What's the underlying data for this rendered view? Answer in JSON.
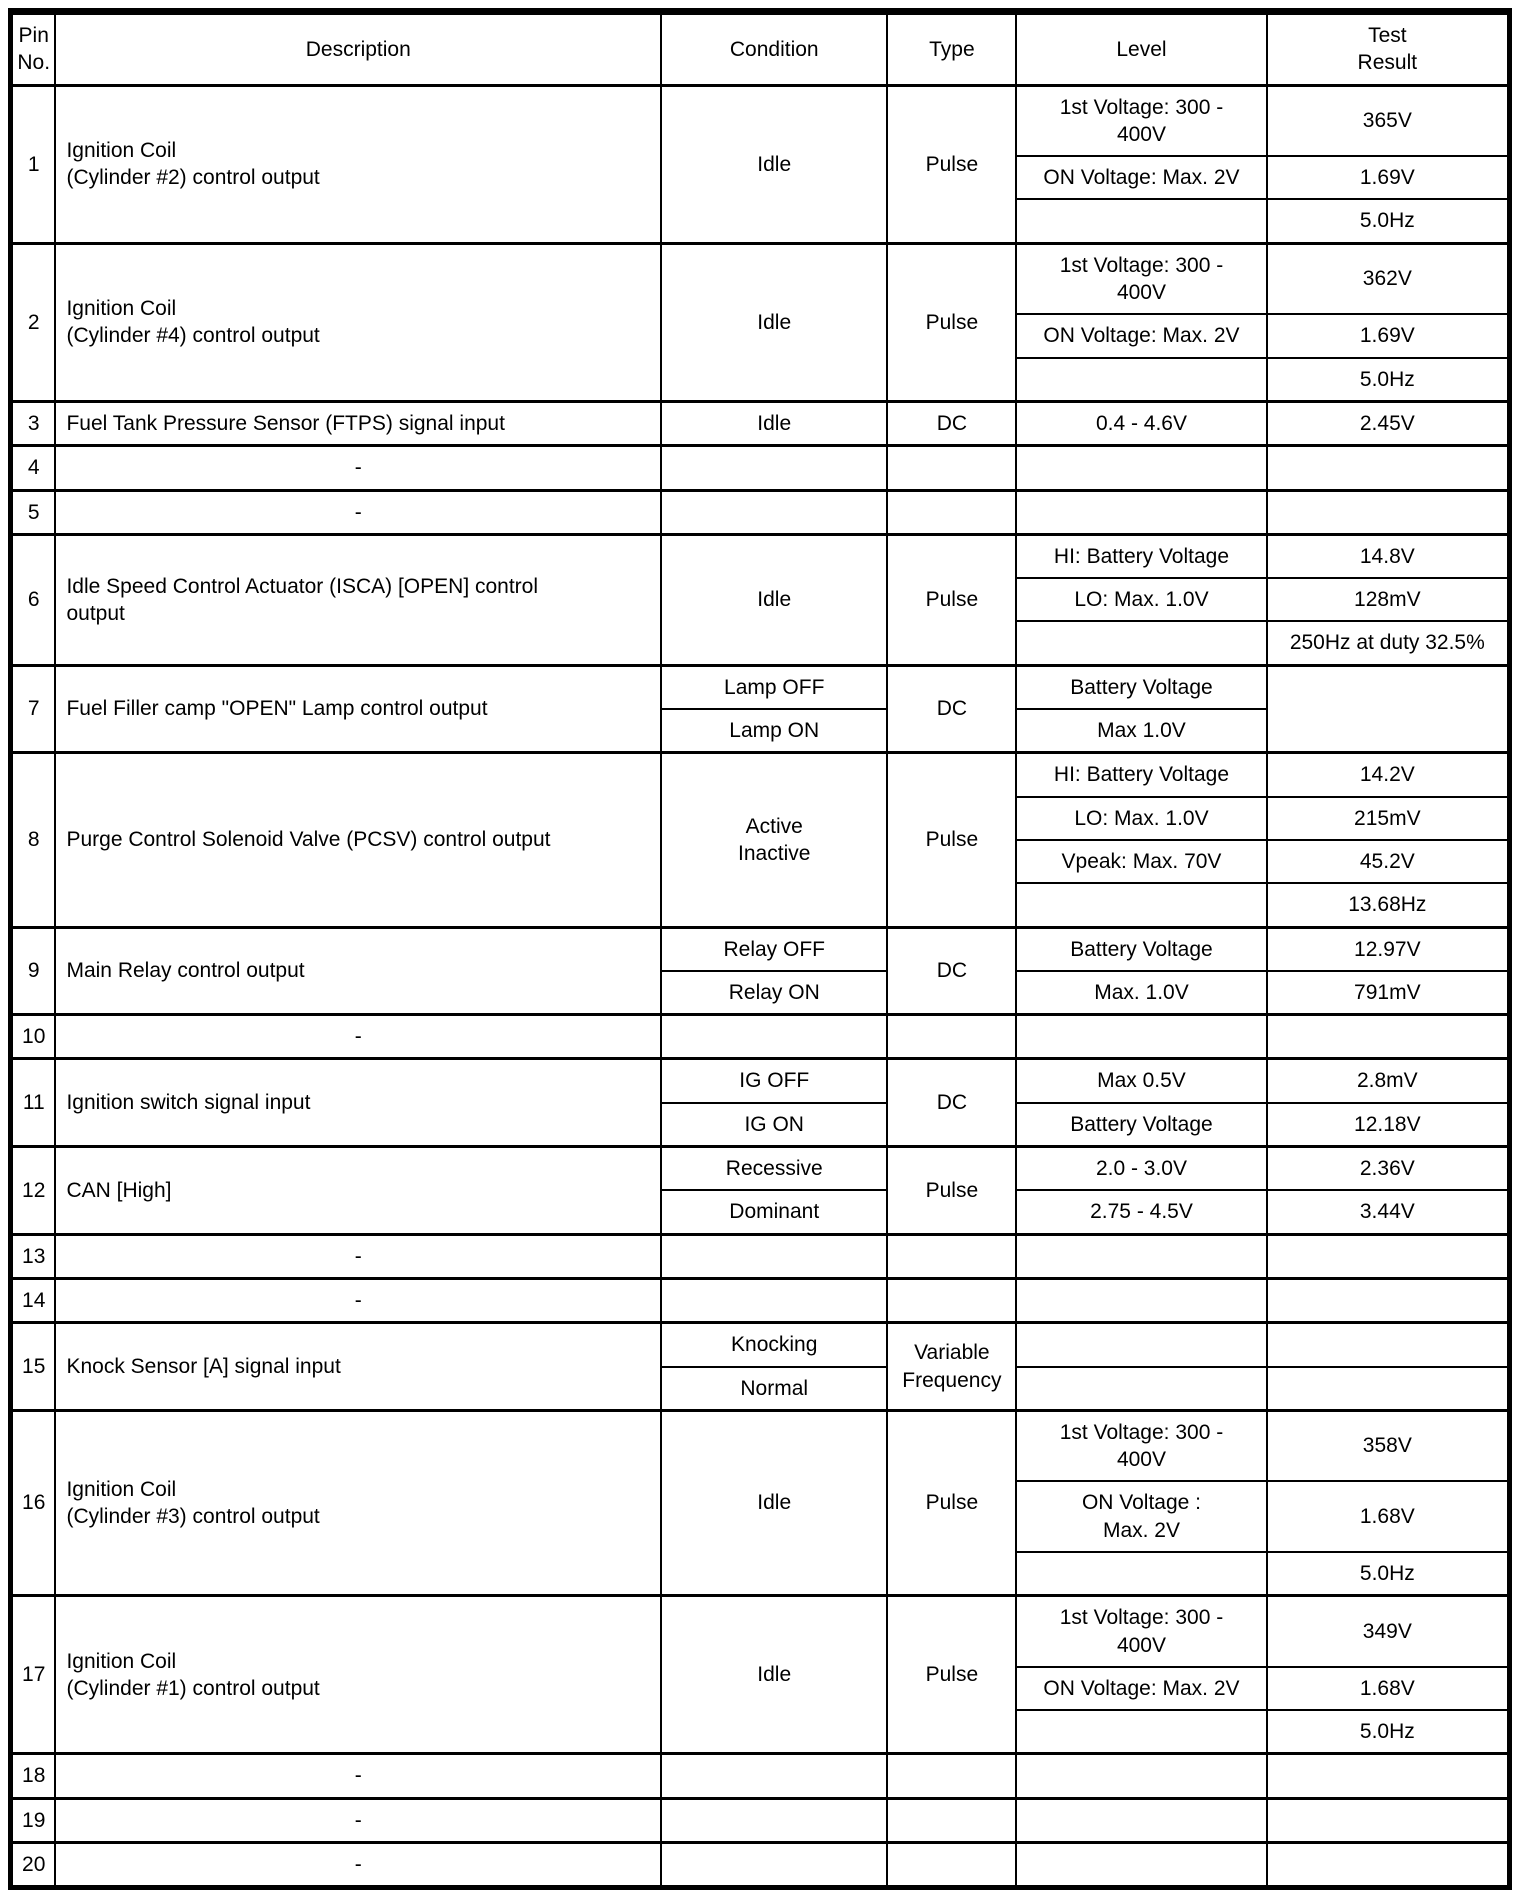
{
  "palette": {
    "background": "#ffffff",
    "line": "#000000",
    "text": "#000000"
  },
  "table": {
    "columns": [
      "Pin\nNo.",
      "Description",
      "Condition",
      "Type",
      "Level",
      "Test\nResult"
    ],
    "rows": [
      [
        {
          "t": "1",
          "col": 0,
          "rs": 3
        },
        {
          "t": "Ignition Coil\n(Cylinder #2) control output",
          "col": 1,
          "rs": 3
        },
        {
          "t": "Idle",
          "col": 2,
          "rs": 3
        },
        {
          "t": "Pulse",
          "col": 3,
          "rs": 3
        },
        {
          "t": "1st Voltage: 300 -\n400V",
          "col": 4
        },
        {
          "t": "365V",
          "col": 5
        }
      ],
      [
        {
          "t": "ON Voltage: Max. 2V",
          "col": 4
        },
        {
          "t": "1.69V",
          "col": 5
        }
      ],
      [
        {
          "t": "",
          "col": 4
        },
        {
          "t": "5.0Hz",
          "col": 5
        }
      ],
      [
        {
          "t": "2",
          "col": 0,
          "rs": 3
        },
        {
          "t": "Ignition Coil\n(Cylinder #4) control output",
          "col": 1,
          "rs": 3
        },
        {
          "t": "Idle",
          "col": 2,
          "rs": 3
        },
        {
          "t": "Pulse",
          "col": 3,
          "rs": 3
        },
        {
          "t": "1st Voltage: 300 -\n400V",
          "col": 4
        },
        {
          "t": "362V",
          "col": 5
        }
      ],
      [
        {
          "t": "ON Voltage: Max. 2V",
          "col": 4
        },
        {
          "t": "1.69V",
          "col": 5
        }
      ],
      [
        {
          "t": "",
          "col": 4
        },
        {
          "t": "5.0Hz",
          "col": 5
        }
      ],
      [
        {
          "t": "3",
          "col": 0
        },
        {
          "t": "Fuel Tank Pressure Sensor (FTPS) signal input",
          "col": 1
        },
        {
          "t": "Idle",
          "col": 2
        },
        {
          "t": "DC",
          "col": 3
        },
        {
          "t": "0.4 - 4.6V",
          "col": 4
        },
        {
          "t": "2.45V",
          "col": 5
        }
      ],
      [
        {
          "t": "4",
          "col": 0
        },
        {
          "t": "-",
          "col": 1
        },
        {
          "t": "",
          "col": 2
        },
        {
          "t": "",
          "col": 3
        },
        {
          "t": "",
          "col": 4
        },
        {
          "t": "",
          "col": 5
        }
      ],
      [
        {
          "t": "5",
          "col": 0
        },
        {
          "t": "-",
          "col": 1
        },
        {
          "t": "",
          "col": 2
        },
        {
          "t": "",
          "col": 3
        },
        {
          "t": "",
          "col": 4
        },
        {
          "t": "",
          "col": 5
        }
      ],
      [
        {
          "t": "6",
          "col": 0,
          "rs": 3
        },
        {
          "t": "Idle Speed Control Actuator (ISCA) [OPEN] control\noutput",
          "col": 1,
          "rs": 3
        },
        {
          "t": "Idle",
          "col": 2,
          "rs": 3
        },
        {
          "t": "Pulse",
          "col": 3,
          "rs": 3
        },
        {
          "t": "HI: Battery Voltage",
          "col": 4
        },
        {
          "t": "14.8V",
          "col": 5
        }
      ],
      [
        {
          "t": "LO: Max. 1.0V",
          "col": 4
        },
        {
          "t": "128mV",
          "col": 5
        }
      ],
      [
        {
          "t": "",
          "col": 4
        },
        {
          "t": "250Hz at duty 32.5%",
          "col": 5
        }
      ],
      [
        {
          "t": "7",
          "col": 0,
          "rs": 2
        },
        {
          "t": "Fuel Filler camp \"OPEN\" Lamp control output",
          "col": 1,
          "rs": 2
        },
        {
          "t": "Lamp OFF",
          "col": 2
        },
        {
          "t": "DC",
          "col": 3,
          "rs": 2
        },
        {
          "t": "Battery Voltage",
          "col": 4
        },
        {
          "t": "",
          "col": 5,
          "rs": 2
        }
      ],
      [
        {
          "t": "Lamp ON",
          "col": 2
        },
        {
          "t": "Max 1.0V",
          "col": 4
        }
      ],
      [
        {
          "t": "8",
          "col": 0,
          "rs": 4
        },
        {
          "t": "Purge Control Solenoid Valve (PCSV) control output",
          "col": 1,
          "rs": 4
        },
        {
          "t": "Active\nInactive",
          "col": 2,
          "rs": 4
        },
        {
          "t": "Pulse",
          "col": 3,
          "rs": 4
        },
        {
          "t": "HI: Battery Voltage",
          "col": 4
        },
        {
          "t": "14.2V",
          "col": 5
        }
      ],
      [
        {
          "t": "LO: Max. 1.0V",
          "col": 4
        },
        {
          "t": "215mV",
          "col": 5
        }
      ],
      [
        {
          "t": "Vpeak: Max. 70V",
          "col": 4
        },
        {
          "t": "45.2V",
          "col": 5
        }
      ],
      [
        {
          "t": "",
          "col": 4
        },
        {
          "t": "13.68Hz",
          "col": 5
        }
      ],
      [
        {
          "t": "9",
          "col": 0,
          "rs": 2
        },
        {
          "t": "Main Relay control output",
          "col": 1,
          "rs": 2
        },
        {
          "t": "Relay OFF",
          "col": 2
        },
        {
          "t": "DC",
          "col": 3,
          "rs": 2
        },
        {
          "t": "Battery Voltage",
          "col": 4
        },
        {
          "t": "12.97V",
          "col": 5
        }
      ],
      [
        {
          "t": "Relay ON",
          "col": 2
        },
        {
          "t": "Max. 1.0V",
          "col": 4
        },
        {
          "t": "791mV",
          "col": 5
        }
      ],
      [
        {
          "t": "10",
          "col": 0
        },
        {
          "t": "-",
          "col": 1
        },
        {
          "t": "",
          "col": 2
        },
        {
          "t": "",
          "col": 3
        },
        {
          "t": "",
          "col": 4
        },
        {
          "t": "",
          "col": 5
        }
      ],
      [
        {
          "t": "11",
          "col": 0,
          "rs": 2
        },
        {
          "t": "Ignition switch signal input",
          "col": 1,
          "rs": 2
        },
        {
          "t": "IG OFF",
          "col": 2
        },
        {
          "t": "DC",
          "col": 3,
          "rs": 2
        },
        {
          "t": "Max 0.5V",
          "col": 4
        },
        {
          "t": "2.8mV",
          "col": 5
        }
      ],
      [
        {
          "t": "IG ON",
          "col": 2
        },
        {
          "t": "Battery Voltage",
          "col": 4
        },
        {
          "t": "12.18V",
          "col": 5
        }
      ],
      [
        {
          "t": "12",
          "col": 0,
          "rs": 2
        },
        {
          "t": "CAN [High]",
          "col": 1,
          "rs": 2
        },
        {
          "t": "Recessive",
          "col": 2
        },
        {
          "t": "Pulse",
          "col": 3,
          "rs": 2
        },
        {
          "t": "2.0 - 3.0V",
          "col": 4
        },
        {
          "t": "2.36V",
          "col": 5
        }
      ],
      [
        {
          "t": "Dominant",
          "col": 2
        },
        {
          "t": "2.75 - 4.5V",
          "col": 4
        },
        {
          "t": "3.44V",
          "col": 5
        }
      ],
      [
        {
          "t": "13",
          "col": 0
        },
        {
          "t": "-",
          "col": 1
        },
        {
          "t": "",
          "col": 2
        },
        {
          "t": "",
          "col": 3
        },
        {
          "t": "",
          "col": 4
        },
        {
          "t": "",
          "col": 5
        }
      ],
      [
        {
          "t": "14",
          "col": 0
        },
        {
          "t": "-",
          "col": 1
        },
        {
          "t": "",
          "col": 2
        },
        {
          "t": "",
          "col": 3
        },
        {
          "t": "",
          "col": 4
        },
        {
          "t": "",
          "col": 5
        }
      ],
      [
        {
          "t": "15",
          "col": 0,
          "rs": 2
        },
        {
          "t": "Knock Sensor [A] signal input",
          "col": 1,
          "rs": 2
        },
        {
          "t": "Knocking",
          "col": 2
        },
        {
          "t": "Variable\nFrequency",
          "col": 3,
          "rs": 2
        },
        {
          "t": "",
          "col": 4
        },
        {
          "t": "",
          "col": 5
        }
      ],
      [
        {
          "t": "Normal",
          "col": 2
        },
        {
          "t": "",
          "col": 4
        },
        {
          "t": "",
          "col": 5
        }
      ],
      [
        {
          "t": "16",
          "col": 0,
          "rs": 3
        },
        {
          "t": "Ignition Coil\n(Cylinder #3) control output",
          "col": 1,
          "rs": 3
        },
        {
          "t": "Idle",
          "col": 2,
          "rs": 3
        },
        {
          "t": "Pulse",
          "col": 3,
          "rs": 3
        },
        {
          "t": "1st Voltage: 300 -\n400V",
          "col": 4
        },
        {
          "t": "358V",
          "col": 5
        }
      ],
      [
        {
          "t": "ON Voltage :\nMax. 2V",
          "col": 4
        },
        {
          "t": "1.68V",
          "col": 5
        }
      ],
      [
        {
          "t": "",
          "col": 4
        },
        {
          "t": "5.0Hz",
          "col": 5
        }
      ],
      [
        {
          "t": "17",
          "col": 0,
          "rs": 3
        },
        {
          "t": "Ignition Coil\n(Cylinder #1) control output",
          "col": 1,
          "rs": 3
        },
        {
          "t": "Idle",
          "col": 2,
          "rs": 3
        },
        {
          "t": "Pulse",
          "col": 3,
          "rs": 3
        },
        {
          "t": "1st Voltage: 300 -\n400V",
          "col": 4
        },
        {
          "t": "349V",
          "col": 5
        }
      ],
      [
        {
          "t": "ON Voltage: Max. 2V",
          "col": 4
        },
        {
          "t": "1.68V",
          "col": 5
        }
      ],
      [
        {
          "t": "",
          "col": 4
        },
        {
          "t": "5.0Hz",
          "col": 5
        }
      ],
      [
        {
          "t": "18",
          "col": 0
        },
        {
          "t": "-",
          "col": 1
        },
        {
          "t": "",
          "col": 2
        },
        {
          "t": "",
          "col": 3
        },
        {
          "t": "",
          "col": 4
        },
        {
          "t": "",
          "col": 5
        }
      ],
      [
        {
          "t": "19",
          "col": 0
        },
        {
          "t": "-",
          "col": 1
        },
        {
          "t": "",
          "col": 2
        },
        {
          "t": "",
          "col": 3
        },
        {
          "t": "",
          "col": 4
        },
        {
          "t": "",
          "col": 5
        }
      ],
      [
        {
          "t": "20",
          "col": 0
        },
        {
          "t": "-",
          "col": 1
        },
        {
          "t": "",
          "col": 2
        },
        {
          "t": "",
          "col": 3
        },
        {
          "t": "",
          "col": 4
        },
        {
          "t": "",
          "col": 5
        }
      ]
    ]
  }
}
